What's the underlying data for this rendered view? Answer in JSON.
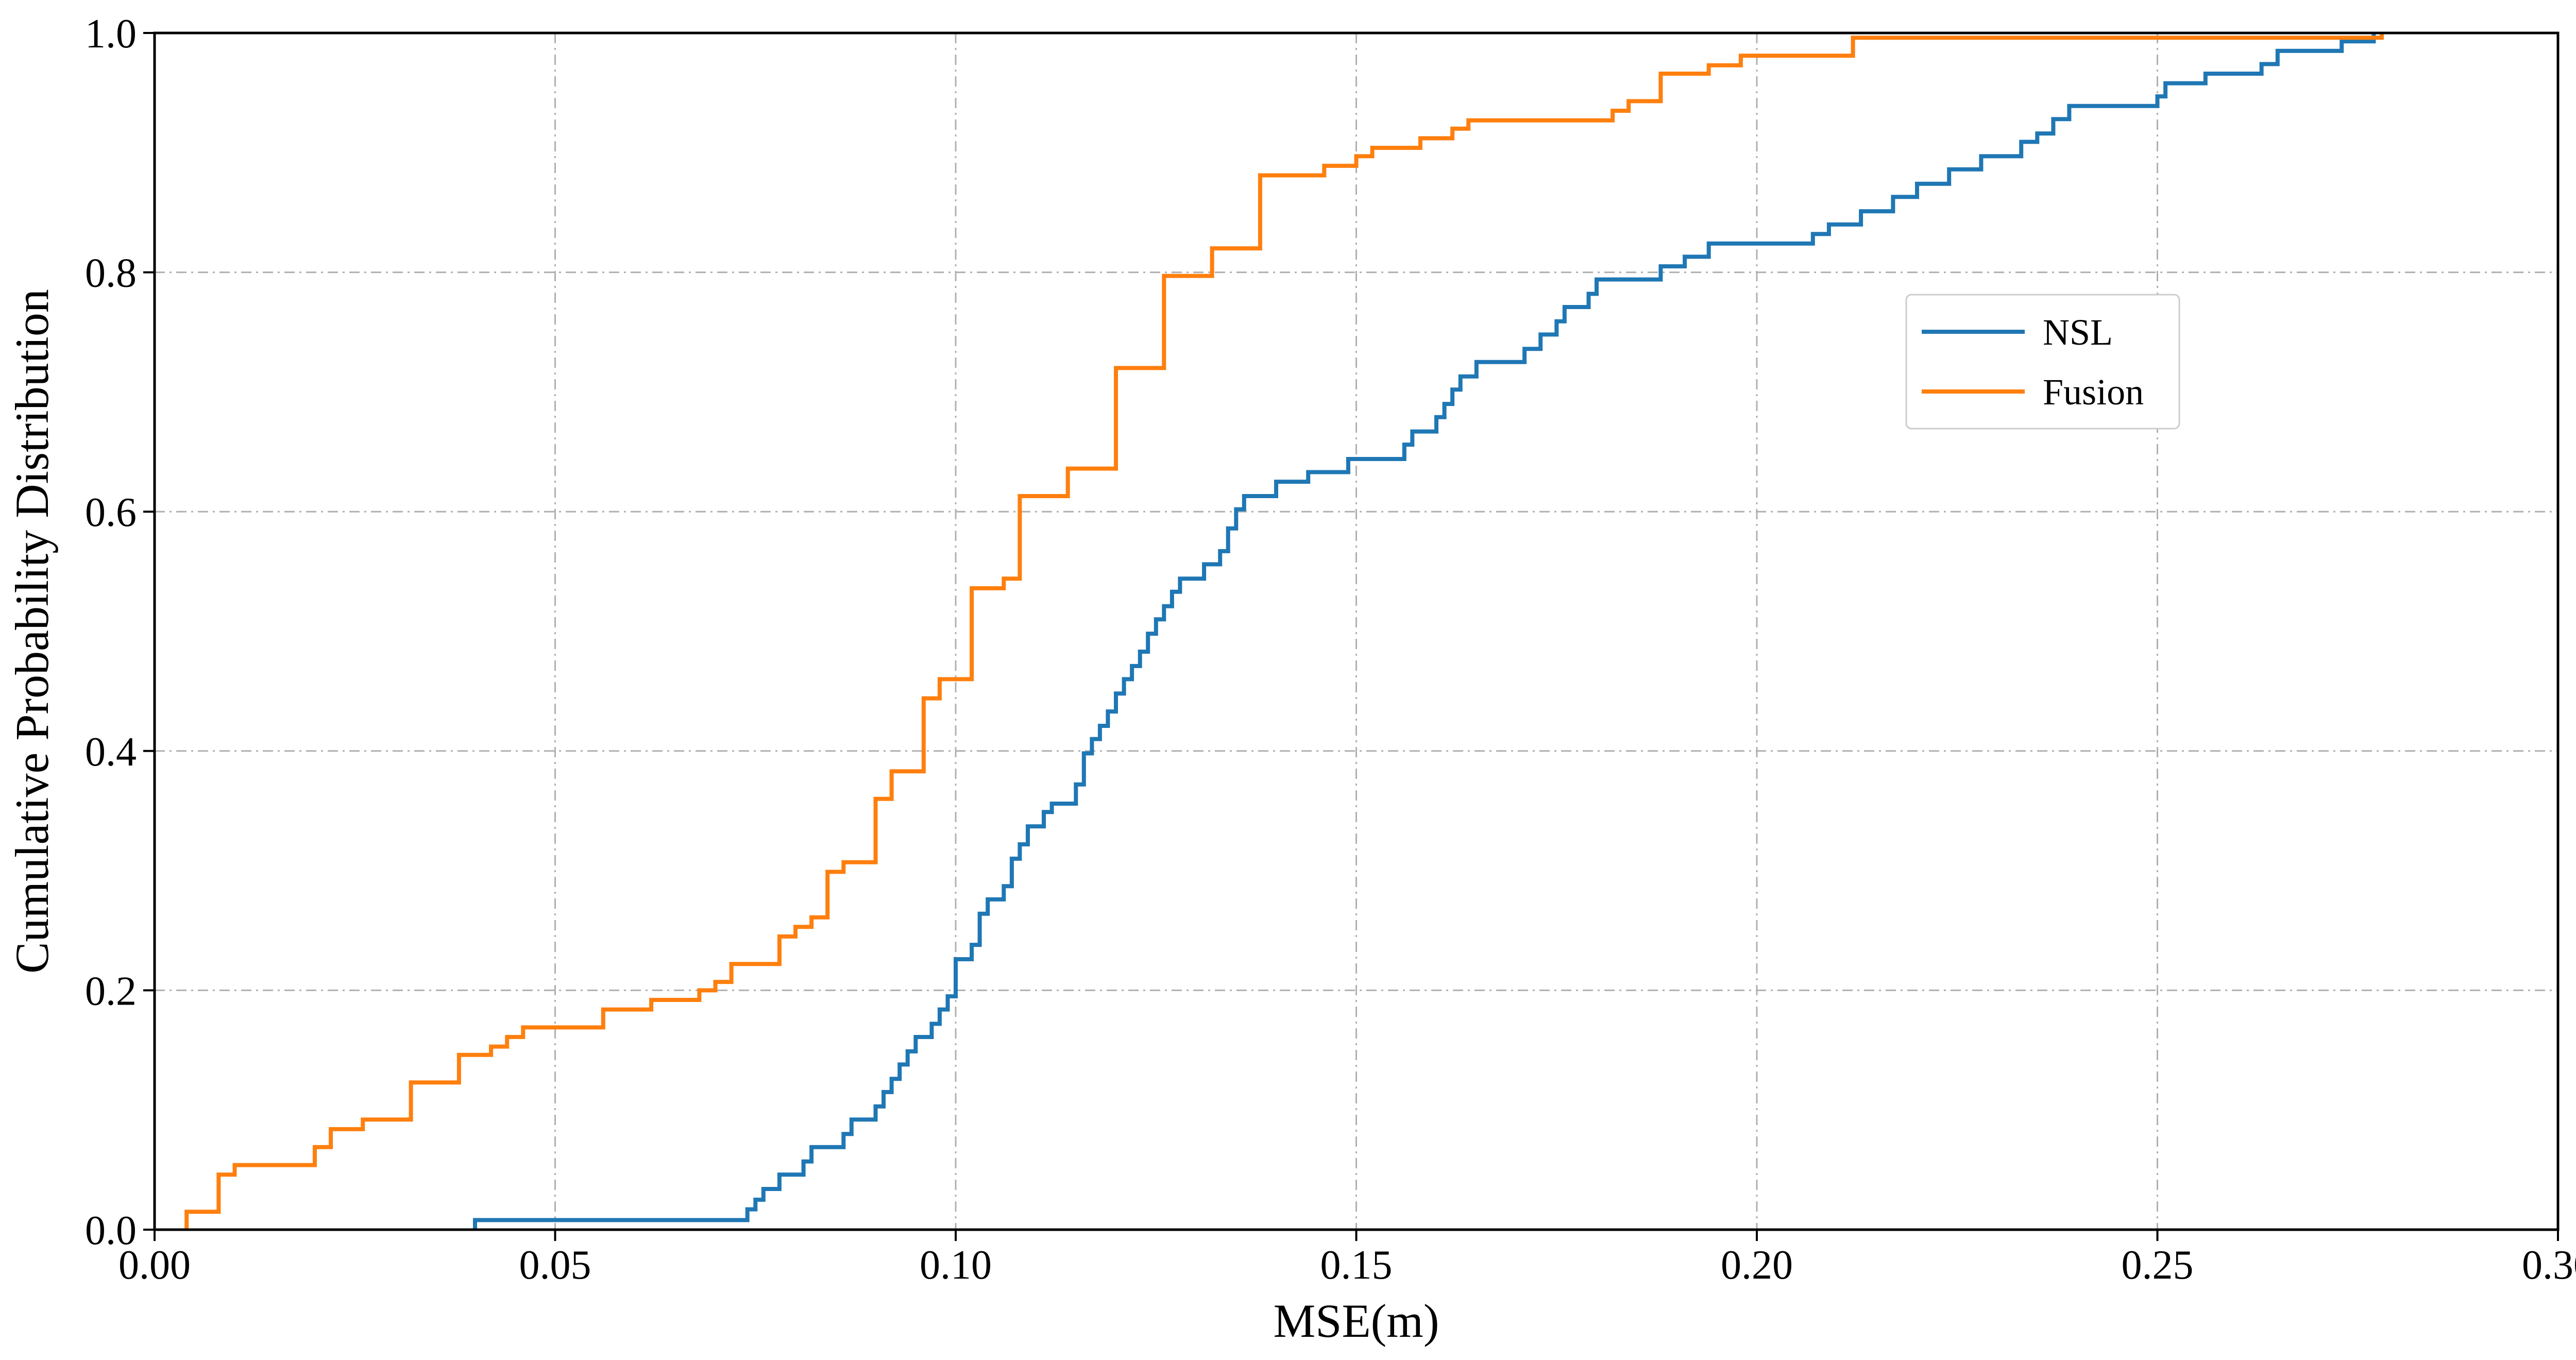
{
  "chart_data": {
    "type": "line",
    "step": true,
    "title": "",
    "xlabel": "MSE(m)",
    "ylabel": "Cumulative Probability Distribution",
    "xlim": [
      0.0,
      0.3
    ],
    "ylim": [
      0.0,
      1.0
    ],
    "x_ticks": [
      0.0,
      0.05,
      0.1,
      0.15,
      0.2,
      0.25,
      0.3
    ],
    "x_tick_labels": [
      "0.00",
      "0.05",
      "0.10",
      "0.15",
      "0.20",
      "0.25",
      "0.30"
    ],
    "y_ticks": [
      0.0,
      0.2,
      0.4,
      0.6,
      0.8,
      1.0
    ],
    "y_tick_labels": [
      "0.0",
      "0.2",
      "0.4",
      "0.6",
      "0.8",
      "1.0"
    ],
    "grid": true,
    "legend_position": "upper-right-center",
    "series": [
      {
        "name": "NSL",
        "color": "#1f77b4",
        "points": [
          [
            0.04,
            0.008
          ],
          [
            0.074,
            0.017
          ],
          [
            0.075,
            0.025
          ],
          [
            0.076,
            0.034
          ],
          [
            0.078,
            0.046
          ],
          [
            0.081,
            0.057
          ],
          [
            0.082,
            0.069
          ],
          [
            0.086,
            0.08
          ],
          [
            0.087,
            0.092
          ],
          [
            0.09,
            0.103
          ],
          [
            0.091,
            0.115
          ],
          [
            0.092,
            0.126
          ],
          [
            0.093,
            0.138
          ],
          [
            0.094,
            0.149
          ],
          [
            0.095,
            0.161
          ],
          [
            0.097,
            0.172
          ],
          [
            0.098,
            0.184
          ],
          [
            0.099,
            0.195
          ],
          [
            0.1,
            0.211
          ],
          [
            0.1,
            0.226
          ],
          [
            0.102,
            0.238
          ],
          [
            0.103,
            0.253
          ],
          [
            0.103,
            0.264
          ],
          [
            0.104,
            0.276
          ],
          [
            0.106,
            0.287
          ],
          [
            0.107,
            0.299
          ],
          [
            0.107,
            0.31
          ],
          [
            0.108,
            0.322
          ],
          [
            0.109,
            0.337
          ],
          [
            0.111,
            0.349
          ],
          [
            0.112,
            0.356
          ],
          [
            0.115,
            0.372
          ],
          [
            0.116,
            0.383
          ],
          [
            0.116,
            0.398
          ],
          [
            0.117,
            0.41
          ],
          [
            0.118,
            0.421
          ],
          [
            0.119,
            0.433
          ],
          [
            0.12,
            0.448
          ],
          [
            0.121,
            0.46
          ],
          [
            0.122,
            0.471
          ],
          [
            0.123,
            0.483
          ],
          [
            0.124,
            0.498
          ],
          [
            0.125,
            0.51
          ],
          [
            0.126,
            0.521
          ],
          [
            0.127,
            0.533
          ],
          [
            0.128,
            0.544
          ],
          [
            0.131,
            0.556
          ],
          [
            0.133,
            0.567
          ],
          [
            0.134,
            0.586
          ],
          [
            0.135,
            0.602
          ],
          [
            0.136,
            0.613
          ],
          [
            0.14,
            0.625
          ],
          [
            0.144,
            0.633
          ],
          [
            0.149,
            0.644
          ],
          [
            0.156,
            0.656
          ],
          [
            0.157,
            0.667
          ],
          [
            0.16,
            0.679
          ],
          [
            0.161,
            0.69
          ],
          [
            0.162,
            0.702
          ],
          [
            0.163,
            0.713
          ],
          [
            0.165,
            0.725
          ],
          [
            0.171,
            0.736
          ],
          [
            0.173,
            0.748
          ],
          [
            0.175,
            0.759
          ],
          [
            0.176,
            0.771
          ],
          [
            0.179,
            0.782
          ],
          [
            0.18,
            0.794
          ],
          [
            0.188,
            0.805
          ],
          [
            0.191,
            0.813
          ],
          [
            0.194,
            0.824
          ],
          [
            0.207,
            0.832
          ],
          [
            0.209,
            0.84
          ],
          [
            0.213,
            0.851
          ],
          [
            0.217,
            0.863
          ],
          [
            0.22,
            0.874
          ],
          [
            0.224,
            0.886
          ],
          [
            0.228,
            0.897
          ],
          [
            0.233,
            0.909
          ],
          [
            0.235,
            0.916
          ],
          [
            0.237,
            0.928
          ],
          [
            0.239,
            0.939
          ],
          [
            0.25,
            0.947
          ],
          [
            0.251,
            0.958
          ],
          [
            0.256,
            0.966
          ],
          [
            0.263,
            0.974
          ],
          [
            0.265,
            0.985
          ],
          [
            0.273,
            0.993
          ],
          [
            0.277,
            1.0
          ]
        ]
      },
      {
        "name": "Fusion",
        "color": "#ff7f0e",
        "points": [
          [
            0.004,
            0.015
          ],
          [
            0.008,
            0.046
          ],
          [
            0.01,
            0.054
          ],
          [
            0.02,
            0.069
          ],
          [
            0.022,
            0.084
          ],
          [
            0.026,
            0.092
          ],
          [
            0.032,
            0.123
          ],
          [
            0.038,
            0.146
          ],
          [
            0.042,
            0.153
          ],
          [
            0.044,
            0.161
          ],
          [
            0.046,
            0.169
          ],
          [
            0.056,
            0.184
          ],
          [
            0.062,
            0.192
          ],
          [
            0.068,
            0.2
          ],
          [
            0.07,
            0.207
          ],
          [
            0.072,
            0.222
          ],
          [
            0.078,
            0.245
          ],
          [
            0.08,
            0.253
          ],
          [
            0.082,
            0.261
          ],
          [
            0.084,
            0.299
          ],
          [
            0.086,
            0.307
          ],
          [
            0.09,
            0.36
          ],
          [
            0.092,
            0.383
          ],
          [
            0.096,
            0.444
          ],
          [
            0.098,
            0.46
          ],
          [
            0.102,
            0.536
          ],
          [
            0.106,
            0.544
          ],
          [
            0.108,
            0.613
          ],
          [
            0.114,
            0.636
          ],
          [
            0.12,
            0.72
          ],
          [
            0.126,
            0.797
          ],
          [
            0.132,
            0.82
          ],
          [
            0.138,
            0.881
          ],
          [
            0.146,
            0.889
          ],
          [
            0.15,
            0.897
          ],
          [
            0.152,
            0.904
          ],
          [
            0.158,
            0.912
          ],
          [
            0.162,
            0.92
          ],
          [
            0.164,
            0.927
          ],
          [
            0.182,
            0.935
          ],
          [
            0.184,
            0.943
          ],
          [
            0.188,
            0.966
          ],
          [
            0.194,
            0.973
          ],
          [
            0.198,
            0.981
          ],
          [
            0.212,
            0.996
          ],
          [
            0.278,
            1.0
          ]
        ]
      }
    ]
  }
}
